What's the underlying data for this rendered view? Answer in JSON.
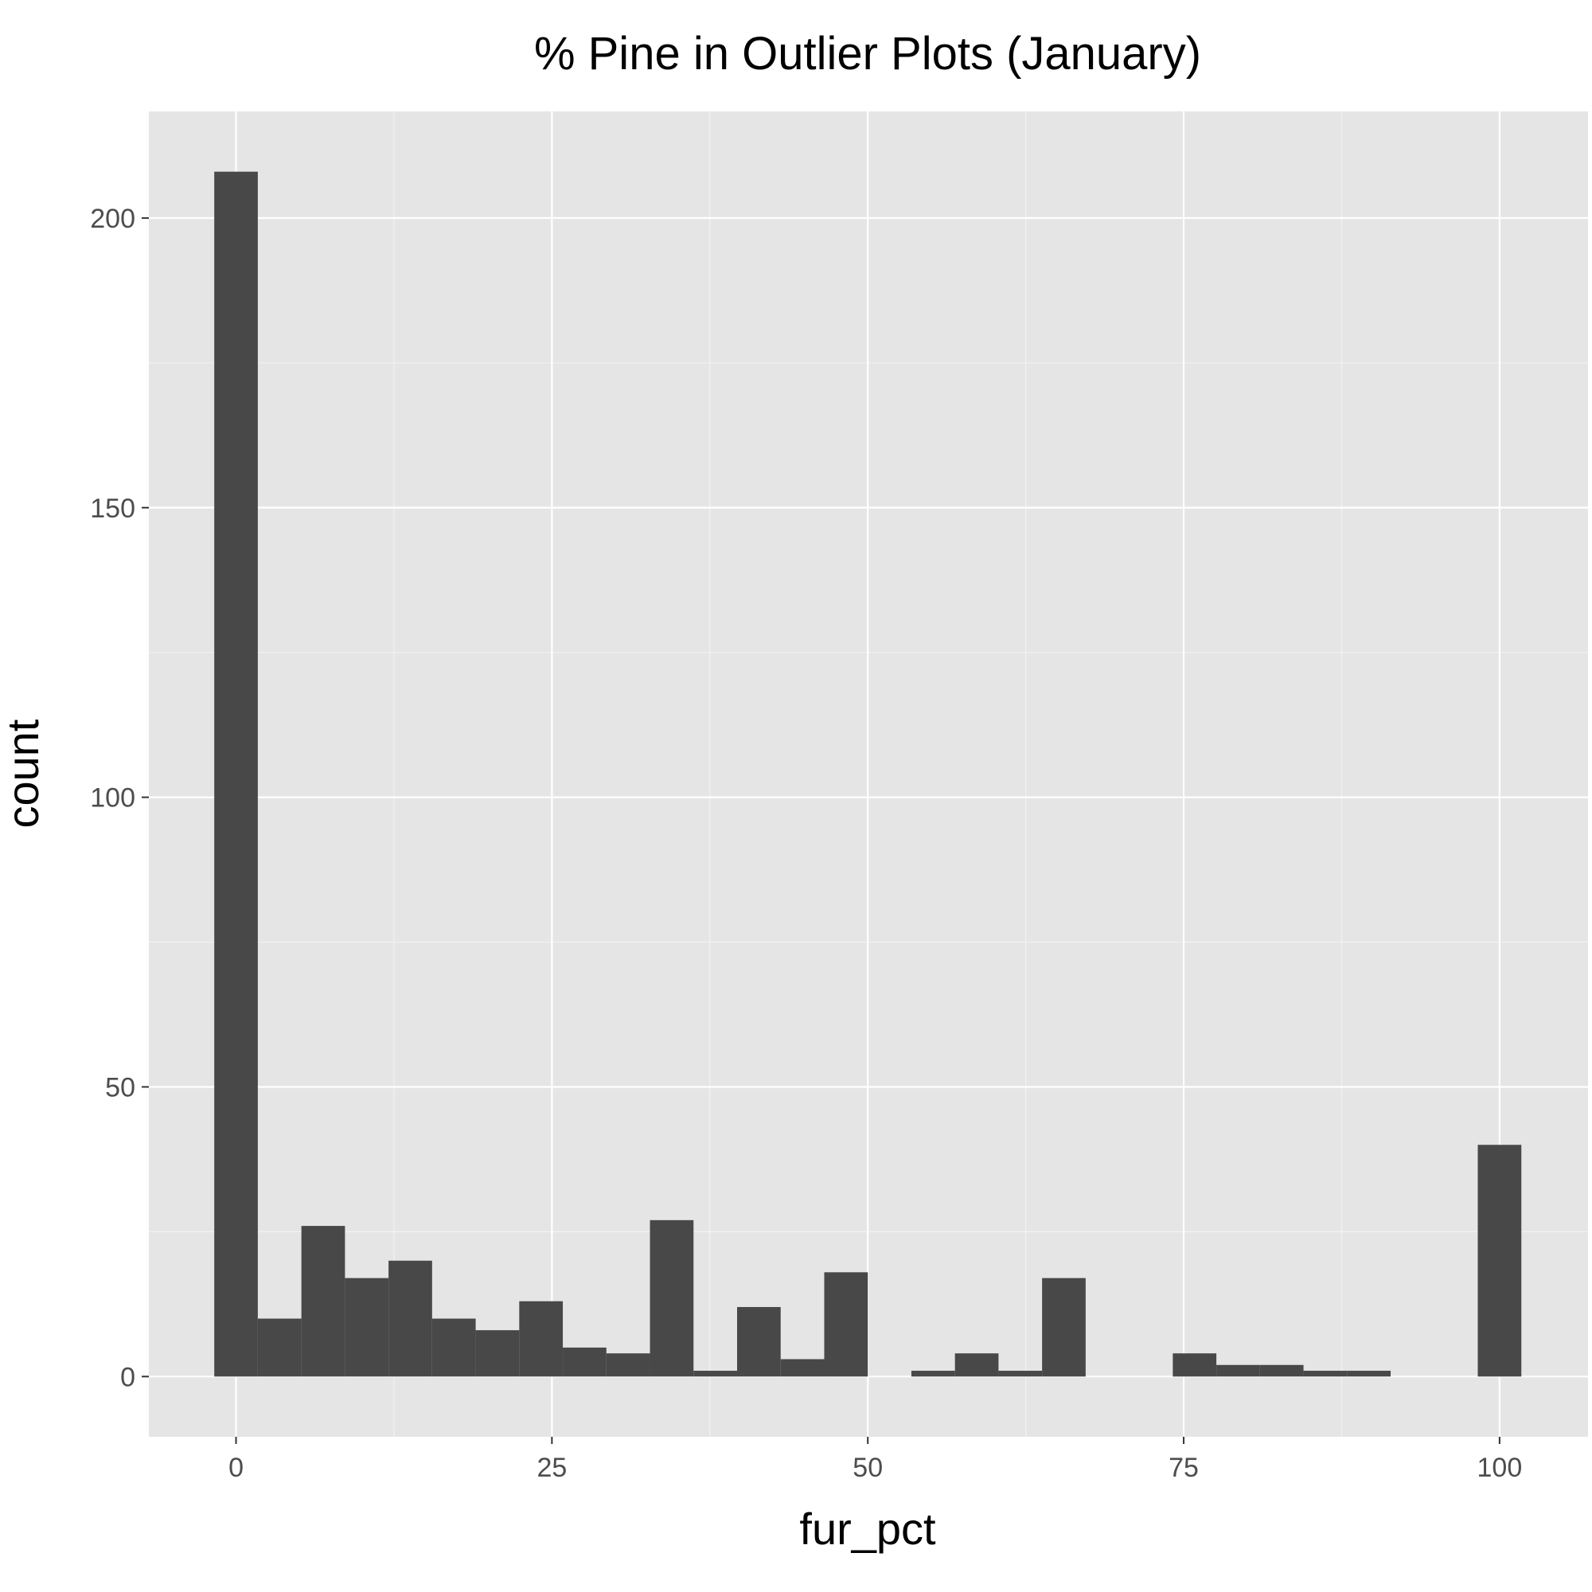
{
  "chart_data": {
    "type": "bar",
    "subtype": "histogram",
    "title": "% Pine in Outlier Plots (January)",
    "xlabel": "fur_pct",
    "ylabel": "count",
    "xlim": [
      -6.9,
      107.0
    ],
    "ylim": [
      -10.4,
      218.4
    ],
    "x_ticks": [
      0,
      25,
      50,
      75,
      100
    ],
    "y_ticks": [
      0,
      50,
      100,
      150,
      200
    ],
    "x_tick_labels": [
      "0",
      "25",
      "50",
      "75",
      "100"
    ],
    "y_tick_labels": [
      "0",
      "50",
      "100",
      "150",
      "200"
    ],
    "bin_width": 3.448,
    "bin_centers": [
      0.0,
      3.448,
      6.897,
      10.345,
      13.793,
      17.241,
      20.69,
      24.138,
      27.586,
      31.034,
      34.483,
      37.931,
      41.379,
      44.828,
      48.276,
      51.724,
      55.172,
      58.621,
      62.069,
      65.517,
      68.966,
      72.414,
      75.862,
      79.31,
      82.759,
      86.207,
      89.655,
      93.103,
      96.552,
      100.0
    ],
    "values": [
      208,
      10,
      26,
      17,
      20,
      10,
      8,
      13,
      5,
      4,
      27,
      1,
      12,
      3,
      18,
      0,
      1,
      4,
      1,
      17,
      0,
      0,
      4,
      2,
      2,
      1,
      1,
      0,
      0,
      40
    ],
    "grid": true,
    "legend": "none",
    "colors": {
      "bar": "#484848",
      "panel_background": "#e5e5e5",
      "grid_major": "#ffffff",
      "grid_minor": "#f2f2f2",
      "tick_text": "#4d4d4d",
      "title_text": "#000000"
    }
  }
}
